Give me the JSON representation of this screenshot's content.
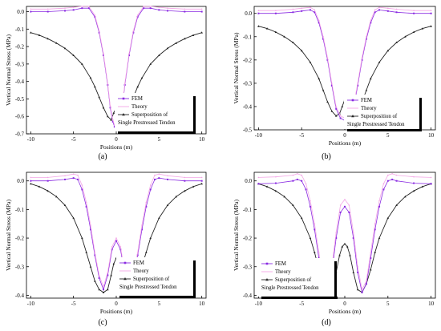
{
  "colors": {
    "fem": "#8a2be2",
    "theory": "#f4a6e6",
    "superposition": "#222222",
    "axis": "#000000"
  },
  "chart_data": [
    {
      "panel": "(a)",
      "type": "line",
      "ylabel": "Vertical Normal Stress (MPa)",
      "xlabel": "Positions (m)",
      "xlim": [
        -10.5,
        10.5
      ],
      "ylim": [
        -0.7,
        0.03
      ],
      "xticks": [
        -10,
        -5,
        0,
        5,
        10
      ],
      "yticks": [
        0.0,
        -0.1,
        -0.2,
        -0.3,
        -0.4,
        -0.5,
        -0.6,
        -0.7
      ],
      "ytick_labels": [
        "0.0",
        "-0.1",
        "-0.2",
        "-0.3",
        "-0.4",
        "-0.5",
        "-0.6",
        "-0.7"
      ],
      "legend_position": "lower-right",
      "legend": [
        "FEM",
        "Theory",
        "Superposition of",
        "Single Prestressed Tendon"
      ],
      "series": [
        {
          "name": "FEM",
          "x": [
            -10,
            -8,
            -6,
            -5,
            -4,
            -3.2,
            -2.5,
            -2,
            -1.5,
            -1,
            -0.7,
            -0.4,
            -0.2,
            0,
            0.2,
            0.4,
            0.7,
            1,
            1.5,
            2,
            2.5,
            3.2,
            4,
            5,
            6,
            8,
            10
          ],
          "y": [
            0.0,
            0.0,
            0.005,
            0.01,
            0.02,
            0.02,
            -0.03,
            -0.12,
            -0.25,
            -0.42,
            -0.55,
            -0.63,
            -0.66,
            -0.67,
            -0.66,
            -0.63,
            -0.55,
            -0.42,
            -0.25,
            -0.12,
            -0.03,
            0.02,
            0.02,
            0.01,
            0.005,
            0.0,
            0.0
          ]
        },
        {
          "name": "Theory",
          "x": [
            -10,
            -8,
            -6,
            -5,
            -4,
            -3.2,
            -2.5,
            -2,
            -1.5,
            -1,
            -0.7,
            -0.4,
            -0.2,
            0,
            0.2,
            0.4,
            0.7,
            1,
            1.5,
            2,
            2.5,
            3.2,
            4,
            5,
            6,
            8,
            10
          ],
          "y": [
            0.015,
            0.015,
            0.02,
            0.025,
            0.03,
            0.03,
            -0.02,
            -0.11,
            -0.24,
            -0.41,
            -0.54,
            -0.62,
            -0.65,
            -0.66,
            -0.65,
            -0.62,
            -0.54,
            -0.41,
            -0.24,
            -0.11,
            -0.02,
            0.03,
            0.03,
            0.025,
            0.02,
            0.015,
            0.015
          ]
        },
        {
          "name": "Superposition of Single Prestressed Tendon",
          "x": [
            -10,
            -9,
            -8,
            -7,
            -6,
            -5,
            -4,
            -3,
            -2.5,
            -2,
            -1.5,
            -1,
            -0.6,
            -0.3,
            0,
            0.3,
            0.6,
            1,
            1.5,
            2,
            2.5,
            3,
            4,
            5,
            6,
            7,
            8,
            9,
            10
          ],
          "y": [
            -0.12,
            -0.135,
            -0.155,
            -0.18,
            -0.21,
            -0.25,
            -0.3,
            -0.38,
            -0.43,
            -0.49,
            -0.55,
            -0.6,
            -0.62,
            -0.58,
            -0.55,
            -0.58,
            -0.62,
            -0.6,
            -0.55,
            -0.49,
            -0.43,
            -0.38,
            -0.3,
            -0.25,
            -0.21,
            -0.18,
            -0.155,
            -0.135,
            -0.12
          ]
        }
      ]
    },
    {
      "panel": "(b)",
      "type": "line",
      "ylabel": "Vertical Normal Stress (MPa)",
      "xlabel": "Positions (m)",
      "xlim": [
        -10.5,
        10.5
      ],
      "ylim": [
        -0.5,
        0.03
      ],
      "xticks": [
        -10,
        -5,
        0,
        5,
        10
      ],
      "yticks": [
        0.0,
        -0.1,
        -0.2,
        -0.3,
        -0.4,
        -0.5
      ],
      "ytick_labels": [
        "0.0",
        "-0.1",
        "-0.2",
        "-0.3",
        "-0.4",
        "-0.5"
      ],
      "legend_position": "lower-right",
      "legend": [
        "FEM",
        "Theory",
        "Superposition of",
        "Single Prestressed Tendon"
      ],
      "series": [
        {
          "name": "FEM",
          "x": [
            -10,
            -8,
            -6,
            -5,
            -4,
            -3.5,
            -3,
            -2.5,
            -2,
            -1.5,
            -1,
            -0.5,
            0,
            0.5,
            1,
            1.5,
            2,
            2.5,
            3,
            3.5,
            4,
            5,
            6,
            8,
            10
          ],
          "y": [
            0.0,
            0.0,
            0.005,
            0.01,
            0.015,
            0.005,
            -0.04,
            -0.11,
            -0.2,
            -0.31,
            -0.41,
            -0.45,
            -0.46,
            -0.45,
            -0.41,
            -0.31,
            -0.2,
            -0.11,
            -0.04,
            0.005,
            0.015,
            0.01,
            0.005,
            0.0,
            0.0
          ]
        },
        {
          "name": "Theory",
          "x": [
            -10,
            -8,
            -6,
            -5,
            -4,
            -3.5,
            -3,
            -2.5,
            -2,
            -1.5,
            -1,
            -0.5,
            0,
            0.5,
            1,
            1.5,
            2,
            2.5,
            3,
            3.5,
            4,
            5,
            6,
            8,
            10
          ],
          "y": [
            0.012,
            0.012,
            0.018,
            0.022,
            0.026,
            0.015,
            -0.03,
            -0.1,
            -0.19,
            -0.3,
            -0.4,
            -0.44,
            -0.45,
            -0.44,
            -0.4,
            -0.3,
            -0.19,
            -0.1,
            -0.03,
            0.015,
            0.026,
            0.022,
            0.018,
            0.012,
            0.012
          ]
        },
        {
          "name": "Superposition of Single Prestressed Tendon",
          "x": [
            -10,
            -9,
            -8,
            -7,
            -6,
            -5,
            -4,
            -3,
            -2.5,
            -2,
            -1.5,
            -1,
            -0.6,
            -0.3,
            0,
            0.3,
            0.6,
            1,
            1.5,
            2,
            2.5,
            3,
            4,
            5,
            6,
            7,
            8,
            9,
            10
          ],
          "y": [
            -0.055,
            -0.065,
            -0.08,
            -0.1,
            -0.125,
            -0.16,
            -0.21,
            -0.28,
            -0.33,
            -0.38,
            -0.42,
            -0.44,
            -0.43,
            -0.4,
            -0.37,
            -0.4,
            -0.43,
            -0.44,
            -0.42,
            -0.38,
            -0.33,
            -0.28,
            -0.21,
            -0.16,
            -0.125,
            -0.1,
            -0.08,
            -0.065,
            -0.055
          ]
        }
      ]
    },
    {
      "panel": "(c)",
      "type": "line",
      "ylabel": "Vertical Normal Stress (MPa)",
      "xlabel": "Positions (m)",
      "xlim": [
        -10.5,
        10.5
      ],
      "ylim": [
        -0.41,
        0.03
      ],
      "xticks": [
        -10,
        -5,
        0,
        5,
        10
      ],
      "yticks": [
        0.0,
        -0.1,
        -0.2,
        -0.3,
        -0.4
      ],
      "ytick_labels": [
        "0.0",
        "-0.1",
        "-0.2",
        "-0.3",
        "-0.4"
      ],
      "legend_position": "lower-right",
      "legend": [
        "FEM",
        "Theory",
        "Superposition of",
        "Single Prestressed Tendon"
      ],
      "series": [
        {
          "name": "FEM",
          "x": [
            -10,
            -8,
            -6,
            -5,
            -4.5,
            -4,
            -3.5,
            -3,
            -2.5,
            -2,
            -1.5,
            -1,
            -0.5,
            0,
            0.5,
            1,
            1.5,
            2,
            2.5,
            3,
            3.5,
            4,
            4.5,
            5,
            6,
            8,
            10
          ],
          "y": [
            0.0,
            0.0,
            0.005,
            0.01,
            0.005,
            -0.03,
            -0.09,
            -0.17,
            -0.26,
            -0.34,
            -0.38,
            -0.33,
            -0.24,
            -0.21,
            -0.24,
            -0.33,
            -0.38,
            -0.34,
            -0.26,
            -0.17,
            -0.09,
            -0.03,
            0.005,
            0.01,
            0.005,
            0.0,
            0.0
          ]
        },
        {
          "name": "Theory",
          "x": [
            -10,
            -8,
            -6,
            -5,
            -4.5,
            -4,
            -3.5,
            -3,
            -2.5,
            -2,
            -1.5,
            -1,
            -0.5,
            0,
            0.5,
            1,
            1.5,
            2,
            2.5,
            3,
            3.5,
            4,
            4.5,
            5,
            6,
            8,
            10
          ],
          "y": [
            0.012,
            0.012,
            0.018,
            0.024,
            0.02,
            -0.015,
            -0.075,
            -0.155,
            -0.25,
            -0.33,
            -0.37,
            -0.32,
            -0.23,
            -0.2,
            -0.23,
            -0.32,
            -0.37,
            -0.33,
            -0.25,
            -0.155,
            -0.075,
            -0.015,
            0.02,
            0.024,
            0.018,
            0.012,
            0.012
          ]
        },
        {
          "name": "Superposition of Single Prestressed Tendon",
          "x": [
            -10,
            -9,
            -8,
            -7,
            -6,
            -5,
            -4,
            -3.5,
            -3,
            -2.5,
            -2,
            -1.5,
            -1,
            -0.6,
            -0.3,
            0,
            0.3,
            0.6,
            1,
            1.5,
            2,
            2.5,
            3,
            3.5,
            4,
            5,
            6,
            7,
            8,
            9,
            10
          ],
          "y": [
            -0.01,
            -0.02,
            -0.035,
            -0.055,
            -0.085,
            -0.13,
            -0.2,
            -0.25,
            -0.3,
            -0.35,
            -0.38,
            -0.39,
            -0.38,
            -0.33,
            -0.29,
            -0.27,
            -0.29,
            -0.33,
            -0.38,
            -0.39,
            -0.38,
            -0.35,
            -0.3,
            -0.25,
            -0.2,
            -0.13,
            -0.085,
            -0.055,
            -0.035,
            -0.02,
            -0.01
          ]
        }
      ]
    },
    {
      "panel": "(d)",
      "type": "line",
      "ylabel": "Vertical Normal Stress (MPa)",
      "xlabel": "Positions (m)",
      "xlim": [
        -10.5,
        10.5
      ],
      "ylim": [
        -0.41,
        0.03
      ],
      "xticks": [
        -10,
        -5,
        0,
        5,
        10
      ],
      "yticks": [
        0.0,
        -0.1,
        -0.2,
        -0.3,
        -0.4
      ],
      "ytick_labels": [
        "0.0",
        "-0.1",
        "-0.2",
        "-0.3",
        "-0.4"
      ],
      "legend_position": "lower-left",
      "legend": [
        "FEM",
        "Theory",
        "Superposition of",
        "Single Prestressed Tendon"
      ],
      "series": [
        {
          "name": "FEM",
          "x": [
            -10,
            -8,
            -6,
            -5.5,
            -5,
            -4.5,
            -4,
            -3.5,
            -3,
            -2.5,
            -2,
            -1.5,
            -1,
            -0.5,
            0,
            0.5,
            1,
            1.5,
            2,
            2.5,
            3,
            3.5,
            4,
            4.5,
            5,
            5.5,
            6,
            8,
            10
          ],
          "y": [
            -0.01,
            -0.008,
            0.0,
            0.005,
            0.0,
            -0.03,
            -0.09,
            -0.17,
            -0.27,
            -0.36,
            -0.39,
            -0.32,
            -0.2,
            -0.11,
            -0.09,
            -0.11,
            -0.2,
            -0.32,
            -0.39,
            -0.36,
            -0.27,
            -0.17,
            -0.09,
            -0.03,
            0.0,
            0.005,
            0.0,
            -0.008,
            -0.01
          ]
        },
        {
          "name": "Theory",
          "x": [
            -10,
            -8,
            -6,
            -5.5,
            -5,
            -4.5,
            -4,
            -3.5,
            -3,
            -2.5,
            -2,
            -1.5,
            -1,
            -0.5,
            0,
            0.5,
            1,
            1.5,
            2,
            2.5,
            3,
            3.5,
            4,
            4.5,
            5,
            5.5,
            6,
            8,
            10
          ],
          "y": [
            0.012,
            0.014,
            0.02,
            0.025,
            0.02,
            -0.01,
            -0.07,
            -0.15,
            -0.25,
            -0.35,
            -0.38,
            -0.3,
            -0.18,
            -0.085,
            -0.065,
            -0.085,
            -0.18,
            -0.3,
            -0.38,
            -0.35,
            -0.25,
            -0.15,
            -0.07,
            -0.01,
            0.02,
            0.025,
            0.02,
            0.014,
            0.012
          ]
        },
        {
          "name": "Superposition of Single Prestressed Tendon",
          "x": [
            -10,
            -9,
            -8,
            -7,
            -6,
            -5,
            -4,
            -3.5,
            -3,
            -2.5,
            -2,
            -1.5,
            -1,
            -0.6,
            -0.3,
            0,
            0.3,
            0.6,
            1,
            1.5,
            2,
            2.5,
            3,
            3.5,
            4,
            5,
            6,
            7,
            8,
            9,
            10
          ],
          "y": [
            -0.01,
            -0.02,
            -0.035,
            -0.055,
            -0.085,
            -0.13,
            -0.2,
            -0.25,
            -0.31,
            -0.36,
            -0.39,
            -0.38,
            -0.32,
            -0.26,
            -0.23,
            -0.22,
            -0.23,
            -0.26,
            -0.32,
            -0.38,
            -0.39,
            -0.36,
            -0.31,
            -0.25,
            -0.2,
            -0.13,
            -0.085,
            -0.055,
            -0.035,
            -0.02,
            -0.01
          ]
        }
      ]
    }
  ]
}
